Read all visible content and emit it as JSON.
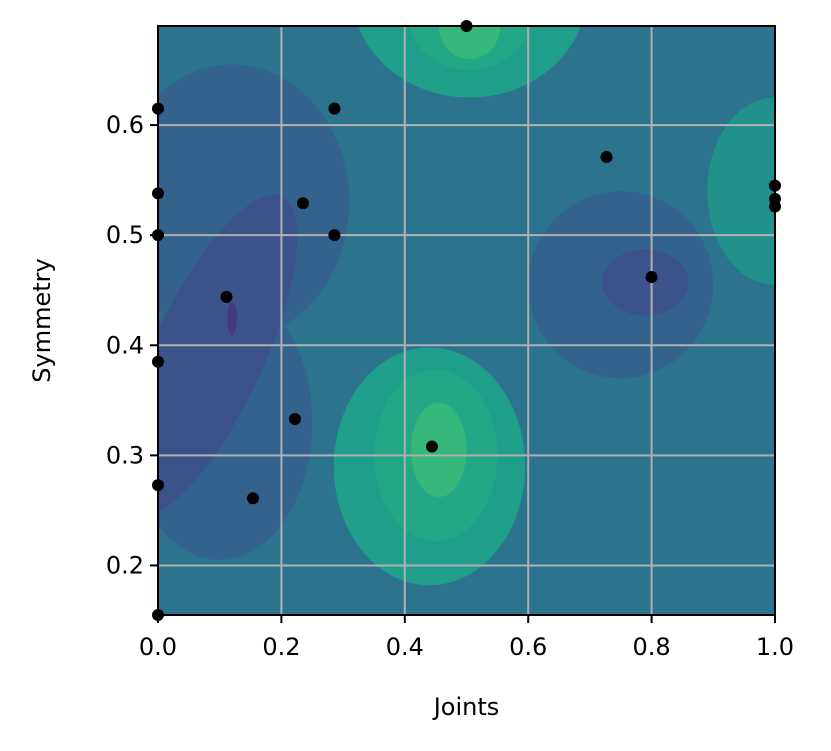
{
  "chart_data": {
    "type": "scatter",
    "title": "",
    "xlabel": "Joints",
    "ylabel": "Symmetry",
    "xlim": [
      0.0,
      1.0
    ],
    "ylim": [
      0.155,
      0.69
    ],
    "xticks": [
      0.0,
      0.2,
      0.4,
      0.6,
      0.8,
      1.0
    ],
    "xtick_labels": [
      "0.0",
      "0.2",
      "0.4",
      "0.6",
      "0.8",
      "1.0"
    ],
    "yticks": [
      0.2,
      0.3,
      0.4,
      0.5,
      0.6
    ],
    "ytick_labels": [
      "0.2",
      "0.3",
      "0.4",
      "0.5",
      "0.6"
    ],
    "grid": true,
    "background": "filled-contour",
    "points": [
      {
        "x": 0.0,
        "y": 0.615
      },
      {
        "x": 0.0,
        "y": 0.538
      },
      {
        "x": 0.0,
        "y": 0.5
      },
      {
        "x": 0.0,
        "y": 0.385
      },
      {
        "x": 0.0,
        "y": 0.273
      },
      {
        "x": 0.0,
        "y": 0.155
      },
      {
        "x": 0.111,
        "y": 0.444
      },
      {
        "x": 0.154,
        "y": 0.261
      },
      {
        "x": 0.222,
        "y": 0.333
      },
      {
        "x": 0.235,
        "y": 0.529
      },
      {
        "x": 0.286,
        "y": 0.615
      },
      {
        "x": 0.286,
        "y": 0.5
      },
      {
        "x": 0.444,
        "y": 0.308
      },
      {
        "x": 0.5,
        "y": 0.69
      },
      {
        "x": 0.727,
        "y": 0.571
      },
      {
        "x": 0.8,
        "y": 0.462
      },
      {
        "x": 1.0,
        "y": 0.545
      },
      {
        "x": 1.0,
        "y": 0.533
      },
      {
        "x": 1.0,
        "y": 0.526
      }
    ],
    "contour_base_color": "#2c738e",
    "contour_levels": [
      {
        "color": "#1f9e89",
        "shape": "blob",
        "center": [
          0.44,
          0.29
        ],
        "radius": [
          0.155,
          0.108
        ],
        "rotation": 0
      },
      {
        "color": "#22a884",
        "shape": "blob",
        "center": [
          0.45,
          0.3
        ],
        "radius": [
          0.1,
          0.078
        ],
        "rotation": 0
      },
      {
        "color": "#35b779",
        "shape": "blob",
        "center": [
          0.455,
          0.305
        ],
        "radius": [
          0.045,
          0.043
        ],
        "rotation": 0
      },
      {
        "color": "#1f9e89",
        "shape": "blob",
        "center": [
          0.505,
          0.72
        ],
        "radius": [
          0.19,
          0.095
        ],
        "rotation": 0
      },
      {
        "color": "#22a884",
        "shape": "blob",
        "center": [
          0.505,
          0.7
        ],
        "radius": [
          0.1,
          0.05
        ],
        "rotation": 0
      },
      {
        "color": "#35b779",
        "shape": "blob",
        "center": [
          0.505,
          0.69
        ],
        "radius": [
          0.05,
          0.03
        ],
        "rotation": 0
      },
      {
        "color": "#21918c",
        "shape": "blob",
        "center": [
          1.0,
          0.54
        ],
        "radius": [
          0.11,
          0.085
        ],
        "rotation": 0
      },
      {
        "color": "#33638d",
        "shape": "blob",
        "center": [
          0.75,
          0.455
        ],
        "radius": [
          0.15,
          0.085
        ],
        "rotation": 0
      },
      {
        "color": "#3b528b",
        "shape": "blob",
        "center": [
          0.79,
          0.457
        ],
        "radius": [
          0.07,
          0.03
        ],
        "rotation": 0
      },
      {
        "color": "#33638d",
        "shape": "blob",
        "center": [
          0.12,
          0.53
        ],
        "radius": [
          0.19,
          0.125
        ],
        "rotation": 0
      },
      {
        "color": "#33638d",
        "shape": "blob",
        "center": [
          0.1,
          0.33
        ],
        "radius": [
          0.15,
          0.125
        ],
        "rotation": 0
      },
      {
        "color": "#3b528b",
        "shape": "blob",
        "center": [
          0.08,
          0.39
        ],
        "radius": [
          0.09,
          0.16
        ],
        "rotation": 25
      },
      {
        "color": "#443983",
        "shape": "blob",
        "center": [
          0.12,
          0.424
        ],
        "radius": [
          0.008,
          0.015
        ],
        "rotation": 0
      }
    ]
  }
}
